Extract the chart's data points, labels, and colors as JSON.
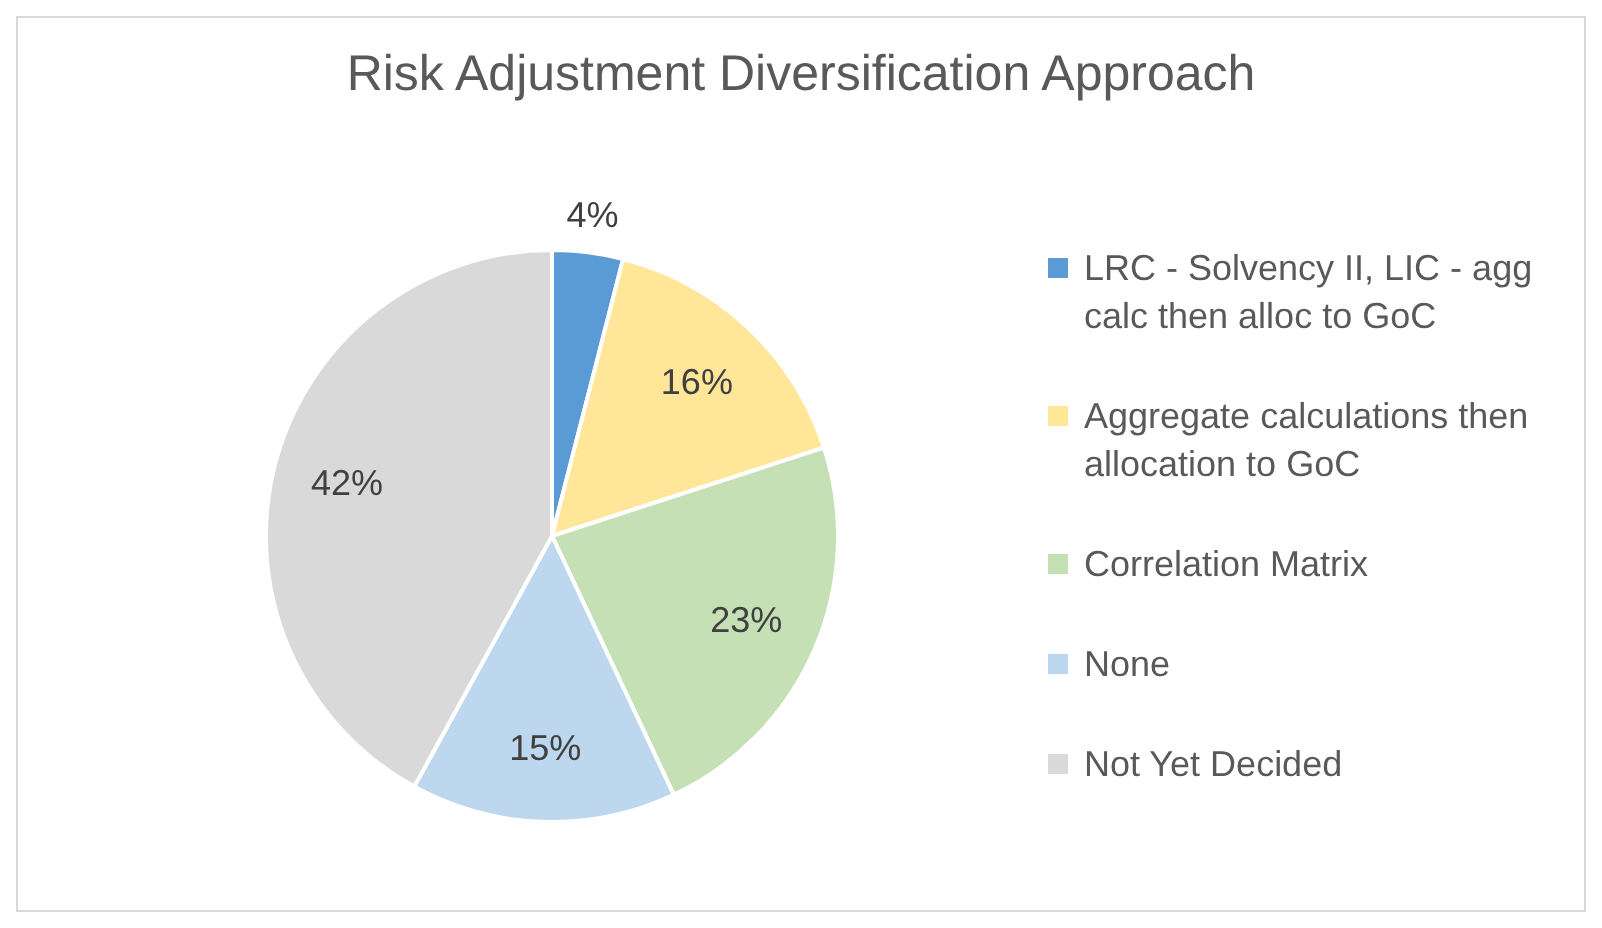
{
  "chart_data": {
    "type": "pie",
    "title": "Risk Adjustment Diversification Approach",
    "categories": [
      "LRC - Solvency II, LIC - agg calc then alloc to GoC",
      "Aggregate calculations then allocation to GoC",
      "Correlation Matrix",
      "None",
      "Not Yet Decided"
    ],
    "values": [
      4,
      16,
      23,
      15,
      42
    ],
    "colors": [
      "#5b9bd5",
      "#ffe699",
      "#c5e0b4",
      "#bdd7ee",
      "#d9d9d9"
    ],
    "value_labels": [
      "4%",
      "16%",
      "23%",
      "15%",
      "42%"
    ],
    "legend": "right"
  }
}
